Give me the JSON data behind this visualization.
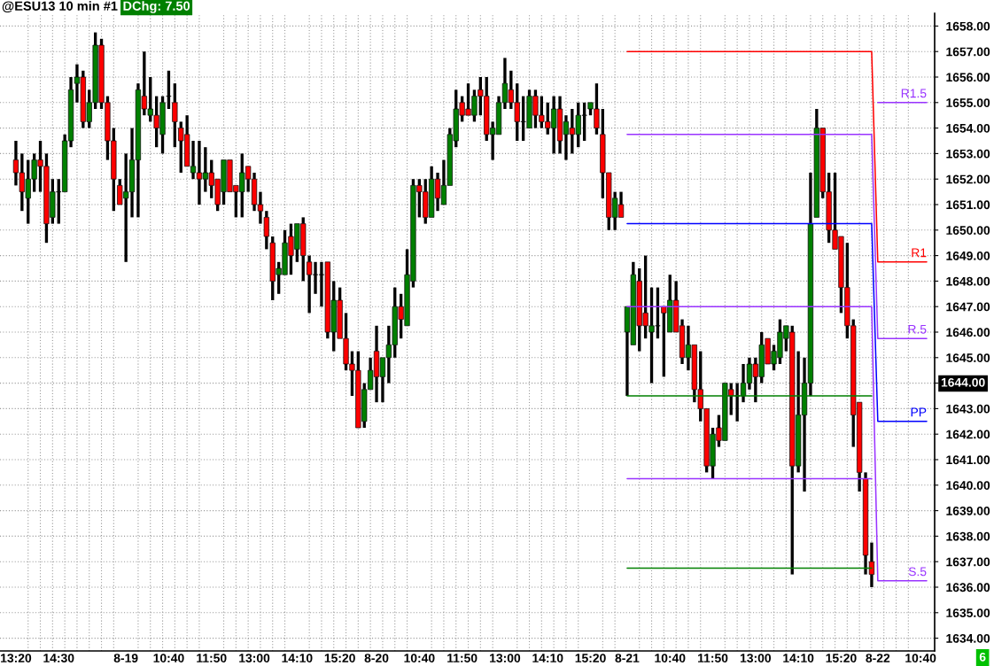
{
  "chart_data": {
    "type": "candlestick",
    "title": "@ESU13 10 min #1",
    "annotations": [
      "DChg: 7.50",
      "1644.00",
      "6"
    ],
    "categories": [
      "13:20",
      null,
      null,
      null,
      null,
      null,
      null,
      "14:30",
      null,
      null,
      null,
      null,
      null,
      null,
      null,
      null,
      null,
      null,
      "8-19",
      null,
      null,
      null,
      null,
      null,
      null,
      "10:40",
      null,
      null,
      null,
      null,
      null,
      null,
      "11:50",
      null,
      null,
      null,
      null,
      null,
      null,
      "13:00",
      null,
      null,
      null,
      null,
      null,
      null,
      "14:10",
      null,
      null,
      null,
      null,
      null,
      null,
      "15:20",
      null,
      null,
      null,
      null,
      null,
      "8-20",
      null,
      null,
      null,
      null,
      null,
      null,
      "10:40",
      null,
      null,
      null,
      null,
      null,
      null,
      "11:50",
      null,
      null,
      null,
      null,
      null,
      null,
      "13:00",
      null,
      null,
      null,
      null,
      null,
      null,
      "14:10",
      null,
      null,
      null,
      null,
      null,
      null,
      "15:20",
      null,
      null,
      null,
      null,
      null,
      "8-21",
      null,
      null,
      null,
      null,
      null,
      null,
      "10:40",
      null,
      null,
      null,
      null,
      null,
      null,
      "11:50",
      null,
      null,
      null,
      null,
      null,
      null,
      "13:00",
      null,
      null,
      null,
      null,
      null,
      null,
      "14:10",
      null,
      null,
      null,
      null,
      null,
      null,
      "15:20",
      null,
      null,
      null,
      null,
      null,
      "8-22",
      null,
      null,
      null,
      null,
      null,
      null,
      "10:40",
      null
    ],
    "ohlc": [
      [
        1652.75,
        1653.5,
        1651.75,
        1652.25
      ],
      [
        1652.25,
        1653,
        1650.75,
        1651.5
      ],
      [
        1651.25,
        1652.75,
        1650.25,
        1652
      ],
      [
        1652,
        1653,
        1651.5,
        1652.75
      ],
      [
        1652.75,
        1653.5,
        1651.5,
        1652.5
      ],
      [
        1652.5,
        1653,
        1649.5,
        1650.25
      ],
      [
        1650.5,
        1652,
        1650.25,
        1651.5
      ],
      [
        1651.5,
        1652,
        1650.25,
        1651.5
      ],
      [
        1651.5,
        1653.75,
        1651.5,
        1653.5
      ],
      [
        1653.5,
        1656,
        1653.25,
        1655.5
      ],
      [
        1655.75,
        1656.5,
        1655,
        1656
      ],
      [
        1656,
        1656.25,
        1654,
        1654.25
      ],
      [
        1654.25,
        1655.5,
        1654,
        1655
      ],
      [
        1655,
        1657.75,
        1654.75,
        1657.25
      ],
      [
        1657.25,
        1657.5,
        1654.75,
        1655
      ],
      [
        1655,
        1655.25,
        1652.75,
        1653.5
      ],
      [
        1653.5,
        1654,
        1650.75,
        1652
      ],
      [
        1651.75,
        1652,
        1651,
        1651
      ],
      [
        1651.25,
        1653,
        1648.75,
        1651.5
      ],
      [
        1651.5,
        1654,
        1650.5,
        1652.75
      ],
      [
        1652.75,
        1655.75,
        1650.5,
        1655.5
      ],
      [
        1655.25,
        1657,
        1654.5,
        1654.75
      ],
      [
        1654.5,
        1656,
        1654.25,
        1654.75
      ],
      [
        1654.5,
        1655.25,
        1653.25,
        1654
      ],
      [
        1653.75,
        1655.25,
        1653,
        1655
      ],
      [
        1655.25,
        1656.25,
        1654.75,
        1655.25
      ],
      [
        1655,
        1655.75,
        1653.25,
        1654.25
      ],
      [
        1654,
        1654.25,
        1652.25,
        1653.5
      ],
      [
        1653.75,
        1654.5,
        1652.5,
        1652.5
      ],
      [
        1652.25,
        1653.5,
        1652,
        1652.5
      ],
      [
        1652.25,
        1653.5,
        1651,
        1652
      ],
      [
        1652,
        1653.25,
        1651.5,
        1652.25
      ],
      [
        1652.25,
        1652.75,
        1651.25,
        1651.75
      ],
      [
        1652,
        1652,
        1650.75,
        1651
      ],
      [
        1651.5,
        1652.75,
        1651,
        1652.75
      ],
      [
        1652.75,
        1652.75,
        1651.5,
        1651.5
      ],
      [
        1651.75,
        1651.75,
        1650.5,
        1651.5
      ],
      [
        1651.5,
        1653,
        1650.5,
        1652.25
      ],
      [
        1652.5,
        1652.5,
        1651.5,
        1652
      ],
      [
        1652,
        1652.25,
        1650.75,
        1651
      ],
      [
        1651,
        1651.5,
        1650.25,
        1650.75
      ],
      [
        1650.5,
        1650.75,
        1649.25,
        1649.75
      ],
      [
        1649.5,
        1649.75,
        1647.25,
        1648
      ],
      [
        1648.25,
        1648.75,
        1647.5,
        1648.5
      ],
      [
        1648.25,
        1650,
        1648.25,
        1649.5
      ],
      [
        1649.75,
        1650.25,
        1648.25,
        1649
      ],
      [
        1649.25,
        1650.25,
        1648.75,
        1650.25
      ],
      [
        1650.25,
        1650.5,
        1648,
        1649
      ],
      [
        1648.75,
        1649,
        1646.75,
        1648.25
      ],
      [
        1648.25,
        1648.75,
        1647.5,
        1648.25
      ],
      [
        1648.25,
        1648.75,
        1647,
        1648.25
      ],
      [
        1648.75,
        1648.75,
        1645.75,
        1646
      ],
      [
        1646,
        1648,
        1645.25,
        1647.25
      ],
      [
        1647.25,
        1647.75,
        1645.75,
        1645.75
      ],
      [
        1645.75,
        1646.75,
        1644.5,
        1644.75
      ],
      [
        1644.75,
        1645.25,
        1643.5,
        1644.5
      ],
      [
        1644.5,
        1645.25,
        1642.25,
        1642.25
      ],
      [
        1642.5,
        1644,
        1642.25,
        1643.75
      ],
      [
        1643.75,
        1645,
        1643.75,
        1644.5
      ],
      [
        1645.25,
        1646.25,
        1643.25,
        1644.25
      ],
      [
        1644.25,
        1645,
        1643.25,
        1645
      ],
      [
        1645,
        1646.25,
        1644,
        1645.5
      ],
      [
        1645.5,
        1647.75,
        1645,
        1647
      ],
      [
        1647,
        1647.5,
        1645.75,
        1646.5
      ],
      [
        1646.25,
        1649.25,
        1646.25,
        1648.25
      ],
      [
        1648,
        1652,
        1647.75,
        1651.75
      ],
      [
        1651.75,
        1652,
        1650.5,
        1651.5
      ],
      [
        1651.5,
        1652,
        1650.25,
        1650.5
      ],
      [
        1650.5,
        1652.5,
        1650.5,
        1652
      ],
      [
        1652,
        1652.25,
        1650.75,
        1651.25
      ],
      [
        1651,
        1652.75,
        1651,
        1651.75
      ],
      [
        1651.75,
        1654,
        1651.75,
        1653.75
      ],
      [
        1653.5,
        1655.5,
        1653.25,
        1654.75
      ],
      [
        1655,
        1655.25,
        1654.25,
        1654.5
      ],
      [
        1654.75,
        1655.75,
        1654.5,
        1654.5
      ],
      [
        1654.5,
        1655.5,
        1654.25,
        1655.25
      ],
      [
        1655.5,
        1656,
        1654.5,
        1655.25
      ],
      [
        1655.25,
        1656,
        1653.5,
        1653.75
      ],
      [
        1653.75,
        1654.25,
        1652.75,
        1654
      ],
      [
        1653.75,
        1655.25,
        1653.75,
        1655
      ],
      [
        1655,
        1656.75,
        1654.75,
        1655.75
      ],
      [
        1655.5,
        1656.25,
        1654.75,
        1655
      ],
      [
        1655,
        1655.75,
        1653.5,
        1654.25
      ],
      [
        1654.25,
        1655.25,
        1653.5,
        1654.25
      ],
      [
        1654,
        1655.5,
        1654,
        1655.25
      ],
      [
        1655.25,
        1655.5,
        1654,
        1654.5
      ],
      [
        1654.5,
        1655.25,
        1654,
        1654.25
      ],
      [
        1654.25,
        1655,
        1653.75,
        1654
      ],
      [
        1654,
        1655.25,
        1653,
        1654.75
      ],
      [
        1654.75,
        1655.25,
        1653,
        1653.5
      ],
      [
        1653.75,
        1654.5,
        1652.75,
        1654.25
      ],
      [
        1654,
        1654.75,
        1653,
        1653.75
      ],
      [
        1653.75,
        1655,
        1653.25,
        1654.5
      ],
      [
        1654.5,
        1655,
        1653.5,
        1654.5
      ],
      [
        1654.75,
        1655,
        1654.5,
        1655
      ],
      [
        1654.75,
        1655.75,
        1653.75,
        1654
      ],
      [
        1653.75,
        1654.75,
        1651.25,
        1652.25
      ],
      [
        1652.25,
        1652.25,
        1650,
        1650.5
      ],
      [
        1650.5,
        1651.5,
        1650,
        1651.25
      ],
      [
        1651,
        1651.5,
        1650.5,
        1650.5
      ],
      [
        1646,
        1647,
        1643.5,
        1647
      ],
      [
        1645.5,
        1648.75,
        1645.5,
        1648.25
      ],
      [
        1648,
        1648.5,
        1645.25,
        1646.25
      ],
      [
        1646.75,
        1649,
        1645.75,
        1646.25
      ],
      [
        1646,
        1647.75,
        1644,
        1646.25
      ],
      [
        1646.25,
        1647.75,
        1645.75,
        1646.25
      ],
      [
        1647,
        1647,
        1644.25,
        1646.75
      ],
      [
        1646,
        1648.25,
        1646,
        1647.25
      ],
      [
        1647.25,
        1648,
        1646,
        1646
      ],
      [
        1646.25,
        1646.5,
        1644.75,
        1645
      ],
      [
        1645,
        1646.25,
        1644.5,
        1645.5
      ],
      [
        1645.5,
        1645.5,
        1643.25,
        1643.75
      ],
      [
        1643.75,
        1645.25,
        1642.5,
        1643
      ],
      [
        1643,
        1643,
        1640.5,
        1640.75
      ],
      [
        1640.75,
        1642.25,
        1640.25,
        1642
      ],
      [
        1642.25,
        1642.75,
        1641.5,
        1641.75
      ],
      [
        1641.75,
        1644,
        1641.75,
        1644
      ],
      [
        1643.75,
        1644,
        1642.75,
        1643.5
      ],
      [
        1643.5,
        1644,
        1642.5,
        1643.5
      ],
      [
        1643.5,
        1644.75,
        1643.25,
        1644
      ],
      [
        1644,
        1645,
        1643.75,
        1644.75
      ],
      [
        1644.75,
        1645,
        1643.25,
        1644.25
      ],
      [
        1644.25,
        1646,
        1644,
        1645.5
      ],
      [
        1645.75,
        1645.75,
        1644.75,
        1644.75
      ],
      [
        1644.75,
        1645.5,
        1644.5,
        1645.25
      ],
      [
        1645,
        1646.5,
        1644.75,
        1646
      ],
      [
        1645.75,
        1646.25,
        1645.25,
        1646.25
      ],
      [
        1646,
        1646.25,
        1636.5,
        1640.75
      ],
      [
        1640.75,
        1645.25,
        1640.5,
        1642.75
      ],
      [
        1642.75,
        1645,
        1639.75,
        1644
      ],
      [
        1644,
        1652.25,
        1643.5,
        1650.25
      ],
      [
        1650.5,
        1654.75,
        1650.5,
        1654
      ],
      [
        1654,
        1654,
        1651.25,
        1651.5
      ],
      [
        1651.5,
        1652.25,
        1649.5,
        1650
      ],
      [
        1650,
        1652.25,
        1649.25,
        1649.25
      ],
      [
        1649.75,
        1649.75,
        1646.75,
        1647.75
      ],
      [
        1647.75,
        1649.5,
        1645.75,
        1646.25
      ],
      [
        1646.25,
        1646.5,
        1641.5,
        1642.75
      ],
      [
        1643.25,
        1643.25,
        1639.75,
        1640.5
      ],
      [
        1640.25,
        1640.5,
        1636.5,
        1637.25
      ],
      [
        1637,
        1637.75,
        1636,
        1636.5
      ],
      null,
      null,
      null,
      null,
      null,
      null,
      null,
      null,
      null
    ],
    "colors": [
      "#ff0000",
      "#ff0000",
      "#008000",
      "#008000",
      "#ff0000",
      "#ff0000",
      "#008000",
      "#000000",
      "#008000",
      "#008000",
      "#008000",
      "#ff0000",
      "#008000",
      "#008000",
      "#ff0000",
      "#ff0000",
      "#ff0000",
      "#ff0000",
      "#008000",
      "#008000",
      "#008000",
      "#ff0000",
      "#008000",
      "#ff0000",
      "#008000",
      "#000000",
      "#ff0000",
      "#ff0000",
      "#ff0000",
      "#008000",
      "#ff0000",
      "#008000",
      "#ff0000",
      "#ff0000",
      "#008000",
      "#ff0000",
      "#ff0000",
      "#008000",
      "#ff0000",
      "#ff0000",
      "#ff0000",
      "#ff0000",
      "#ff0000",
      "#008000",
      "#008000",
      "#ff0000",
      "#008000",
      "#ff0000",
      "#ff0000",
      "#000000",
      "#000000",
      "#ff0000",
      "#008000",
      "#ff0000",
      "#ff0000",
      "#ff0000",
      "#ff0000",
      "#008000",
      "#008000",
      "#ff0000",
      "#008000",
      "#008000",
      "#008000",
      "#ff0000",
      "#008000",
      "#008000",
      "#ff0000",
      "#ff0000",
      "#008000",
      "#ff0000",
      "#008000",
      "#008000",
      "#008000",
      "#ff0000",
      "#ff0000",
      "#008000",
      "#ff0000",
      "#ff0000",
      "#008000",
      "#008000",
      "#008000",
      "#ff0000",
      "#ff0000",
      "#000000",
      "#008000",
      "#ff0000",
      "#ff0000",
      "#ff0000",
      "#008000",
      "#ff0000",
      "#008000",
      "#ff0000",
      "#008000",
      "#000000",
      "#008000",
      "#ff0000",
      "#ff0000",
      "#ff0000",
      "#008000",
      "#ff0000",
      "#008000",
      "#008000",
      "#ff0000",
      "#ff0000",
      "#008000",
      "#000000",
      "#ff0000",
      "#008000",
      "#ff0000",
      "#ff0000",
      "#008000",
      "#ff0000",
      "#ff0000",
      "#ff0000",
      "#008000",
      "#ff0000",
      "#008000",
      "#ff0000",
      "#000000",
      "#008000",
      "#008000",
      "#ff0000",
      "#008000",
      "#ff0000",
      "#008000",
      "#008000",
      "#008000",
      "#ff0000",
      "#008000",
      "#008000",
      "#008000",
      "#008000",
      "#ff0000",
      "#ff0000",
      "#ff0000",
      "#ff0000",
      "#ff0000",
      "#ff0000",
      "#ff0000",
      "#ff0000",
      "#ff0000",
      null,
      null,
      null,
      null,
      null,
      null,
      null,
      null,
      null
    ],
    "series": [
      {
        "type": "line",
        "name": "R1.5",
        "color": "#9933ff",
        "values": [
          null,
          null,
          null,
          null,
          null,
          null,
          null,
          null,
          null,
          null,
          null,
          null,
          null,
          null,
          null,
          null,
          null,
          null,
          null,
          null,
          null,
          null,
          null,
          null,
          null,
          null,
          null,
          null,
          null,
          null,
          null,
          null,
          null,
          null,
          null,
          null,
          null,
          null,
          null,
          null,
          null,
          null,
          null,
          null,
          null,
          null,
          null,
          null,
          null,
          null,
          null,
          null,
          null,
          null,
          null,
          null,
          null,
          null,
          null,
          null,
          null,
          null,
          null,
          null,
          null,
          null,
          null,
          null,
          null,
          null,
          null,
          null,
          null,
          null,
          null,
          null,
          null,
          null,
          null,
          null,
          null,
          null,
          null,
          null,
          null,
          null,
          null,
          null,
          null,
          null,
          null,
          null,
          null,
          null,
          null,
          null,
          null,
          null,
          null,
          null,
          null,
          null,
          null,
          null,
          null,
          null,
          null,
          null,
          null,
          null,
          null,
          null,
          null,
          null,
          null,
          null,
          null,
          null,
          null,
          null,
          null,
          null,
          null,
          null,
          null,
          null,
          null,
          null,
          null,
          null,
          null,
          null,
          null,
          null,
          null,
          null,
          null,
          null,
          null,
          null,
          null,
          1655,
          1655,
          1655,
          1655,
          1655,
          1655,
          1655,
          1655,
          1655
        ]
      },
      {
        "type": "line",
        "name": "R1",
        "color": "#ff0000",
        "values": [
          null,
          null,
          null,
          null,
          null,
          null,
          null,
          null,
          null,
          null,
          null,
          null,
          null,
          null,
          null,
          null,
          null,
          null,
          null,
          null,
          null,
          null,
          null,
          null,
          null,
          null,
          null,
          null,
          null,
          null,
          null,
          null,
          null,
          null,
          null,
          null,
          null,
          null,
          null,
          null,
          null,
          null,
          null,
          null,
          null,
          null,
          null,
          null,
          null,
          null,
          null,
          null,
          null,
          null,
          null,
          null,
          null,
          null,
          null,
          null,
          null,
          null,
          null,
          null,
          null,
          null,
          null,
          null,
          null,
          null,
          null,
          null,
          null,
          null,
          null,
          null,
          null,
          null,
          null,
          null,
          null,
          null,
          null,
          null,
          null,
          null,
          null,
          null,
          null,
          null,
          null,
          null,
          null,
          null,
          null,
          null,
          null,
          null,
          null,
          null,
          1657,
          1657,
          1657,
          1657,
          1657,
          1657,
          1657,
          1657,
          1657,
          1657,
          1657,
          1657,
          1657,
          1657,
          1657,
          1657,
          1657,
          1657,
          1657,
          1657,
          1657,
          1657,
          1657,
          1657,
          1657,
          1657,
          1657,
          1657,
          1657,
          1657,
          1657,
          1657,
          1657,
          1657,
          1657,
          1657,
          1657,
          1657,
          1657,
          1657,
          1657,
          1648.75,
          1648.75,
          1648.75,
          1648.75,
          1648.75,
          1648.75,
          1648.75,
          1648.75,
          1648.75
        ]
      },
      {
        "type": "line",
        "name": "R.5",
        "color": "#9933ff",
        "values": [
          null,
          null,
          null,
          null,
          null,
          null,
          null,
          null,
          null,
          null,
          null,
          null,
          null,
          null,
          null,
          null,
          null,
          null,
          null,
          null,
          null,
          null,
          null,
          null,
          null,
          null,
          null,
          null,
          null,
          null,
          null,
          null,
          null,
          null,
          null,
          null,
          null,
          null,
          null,
          null,
          null,
          null,
          null,
          null,
          null,
          null,
          null,
          null,
          null,
          null,
          null,
          null,
          null,
          null,
          null,
          null,
          null,
          null,
          null,
          null,
          null,
          null,
          null,
          null,
          null,
          null,
          null,
          null,
          null,
          null,
          null,
          null,
          null,
          null,
          null,
          null,
          null,
          null,
          null,
          null,
          null,
          null,
          null,
          null,
          null,
          null,
          null,
          null,
          null,
          null,
          null,
          null,
          null,
          null,
          null,
          null,
          null,
          null,
          null,
          null,
          1653.75,
          1653.75,
          1653.75,
          1653.75,
          1653.75,
          1653.75,
          1653.75,
          1653.75,
          1653.75,
          1653.75,
          1653.75,
          1653.75,
          1653.75,
          1653.75,
          1653.75,
          1653.75,
          1653.75,
          1653.75,
          1653.75,
          1653.75,
          1653.75,
          1653.75,
          1653.75,
          1653.75,
          1653.75,
          1653.75,
          1653.75,
          1653.75,
          1653.75,
          1653.75,
          1653.75,
          1653.75,
          1653.75,
          1653.75,
          1653.75,
          1653.75,
          1653.75,
          1653.75,
          1653.75,
          1653.75,
          1653.75,
          1645.75,
          1645.75,
          1645.75,
          1645.75,
          1645.75,
          1645.75,
          1645.75,
          1645.75,
          1645.75
        ]
      },
      {
        "type": "line",
        "name": "PP",
        "color": "#0000ff",
        "values": [
          null,
          null,
          null,
          null,
          null,
          null,
          null,
          null,
          null,
          null,
          null,
          null,
          null,
          null,
          null,
          null,
          null,
          null,
          null,
          null,
          null,
          null,
          null,
          null,
          null,
          null,
          null,
          null,
          null,
          null,
          null,
          null,
          null,
          null,
          null,
          null,
          null,
          null,
          null,
          null,
          null,
          null,
          null,
          null,
          null,
          null,
          null,
          null,
          null,
          null,
          null,
          null,
          null,
          null,
          null,
          null,
          null,
          null,
          null,
          null,
          null,
          null,
          null,
          null,
          null,
          null,
          null,
          null,
          null,
          null,
          null,
          null,
          null,
          null,
          null,
          null,
          null,
          null,
          null,
          null,
          null,
          null,
          null,
          null,
          null,
          null,
          null,
          null,
          null,
          null,
          null,
          null,
          null,
          null,
          null,
          null,
          null,
          null,
          null,
          null,
          1650.25,
          1650.25,
          1650.25,
          1650.25,
          1650.25,
          1650.25,
          1650.25,
          1650.25,
          1650.25,
          1650.25,
          1650.25,
          1650.25,
          1650.25,
          1650.25,
          1650.25,
          1650.25,
          1650.25,
          1650.25,
          1650.25,
          1650.25,
          1650.25,
          1650.25,
          1650.25,
          1650.25,
          1650.25,
          1650.25,
          1650.25,
          1650.25,
          1650.25,
          1650.25,
          1650.25,
          1650.25,
          1650.25,
          1650.25,
          1650.25,
          1650.25,
          1650.25,
          1650.25,
          1650.25,
          1650.25,
          1650.25,
          1642.5,
          1642.5,
          1642.5,
          1642.5,
          1642.5,
          1642.5,
          1642.5,
          1642.5,
          1642.5
        ]
      },
      {
        "type": "line",
        "name": "S.5",
        "color": "#9933ff",
        "values": [
          null,
          null,
          null,
          null,
          null,
          null,
          null,
          null,
          null,
          null,
          null,
          null,
          null,
          null,
          null,
          null,
          null,
          null,
          null,
          null,
          null,
          null,
          null,
          null,
          null,
          null,
          null,
          null,
          null,
          null,
          null,
          null,
          null,
          null,
          null,
          null,
          null,
          null,
          null,
          null,
          null,
          null,
          null,
          null,
          null,
          null,
          null,
          null,
          null,
          null,
          null,
          null,
          null,
          null,
          null,
          null,
          null,
          null,
          null,
          null,
          null,
          null,
          null,
          null,
          null,
          null,
          null,
          null,
          null,
          null,
          null,
          null,
          null,
          null,
          null,
          null,
          null,
          null,
          null,
          null,
          null,
          null,
          null,
          null,
          null,
          null,
          null,
          null,
          null,
          null,
          null,
          null,
          null,
          null,
          null,
          null,
          null,
          null,
          null,
          null,
          1647,
          1647,
          1647,
          1647,
          1647,
          1647,
          1647,
          1647,
          1647,
          1647,
          1647,
          1647,
          1647,
          1647,
          1647,
          1647,
          1647,
          1647,
          1647,
          1647,
          1647,
          1647,
          1647,
          1647,
          1647,
          1647,
          1647,
          1647,
          1647,
          1647,
          1647,
          1647,
          1647,
          1647,
          1647,
          1647,
          1647,
          1647,
          1647,
          1647,
          1647,
          1636.25,
          1636.25,
          1636.25,
          1636.25,
          1636.25,
          1636.25,
          1636.25,
          1636.25,
          1636.25
        ]
      },
      {
        "type": "line",
        "color": "#008000",
        "values": [
          null,
          null,
          null,
          null,
          null,
          null,
          null,
          null,
          null,
          null,
          null,
          null,
          null,
          null,
          null,
          null,
          null,
          null,
          null,
          null,
          null,
          null,
          null,
          null,
          null,
          null,
          null,
          null,
          null,
          null,
          null,
          null,
          null,
          null,
          null,
          null,
          null,
          null,
          null,
          null,
          null,
          null,
          null,
          null,
          null,
          null,
          null,
          null,
          null,
          null,
          null,
          null,
          null,
          null,
          null,
          null,
          null,
          null,
          null,
          null,
          null,
          null,
          null,
          null,
          null,
          null,
          null,
          null,
          null,
          null,
          null,
          null,
          null,
          null,
          null,
          null,
          null,
          null,
          null,
          null,
          null,
          null,
          null,
          null,
          null,
          null,
          null,
          null,
          null,
          null,
          null,
          null,
          null,
          null,
          null,
          null,
          null,
          null,
          null,
          null,
          1643.5,
          1643.5,
          1643.5,
          1643.5,
          1643.5,
          1643.5,
          1643.5,
          1643.5,
          1643.5,
          1643.5,
          1643.5,
          1643.5,
          1643.5,
          1643.5,
          1643.5,
          1643.5,
          1643.5,
          1643.5,
          1643.5,
          1643.5,
          1643.5,
          1643.5,
          1643.5,
          1643.5,
          1643.5,
          1643.5,
          1643.5,
          1643.5,
          1643.5,
          1643.5,
          1643.5,
          1643.5,
          1643.5,
          1643.5,
          1643.5,
          1643.5,
          1643.5,
          1643.5,
          1643.5,
          1643.5,
          1643.5,
          null,
          null,
          null,
          null,
          null,
          null,
          null,
          null,
          null
        ]
      },
      {
        "type": "line",
        "color": "#9933ff",
        "values": [
          null,
          null,
          null,
          null,
          null,
          null,
          null,
          null,
          null,
          null,
          null,
          null,
          null,
          null,
          null,
          null,
          null,
          null,
          null,
          null,
          null,
          null,
          null,
          null,
          null,
          null,
          null,
          null,
          null,
          null,
          null,
          null,
          null,
          null,
          null,
          null,
          null,
          null,
          null,
          null,
          null,
          null,
          null,
          null,
          null,
          null,
          null,
          null,
          null,
          null,
          null,
          null,
          null,
          null,
          null,
          null,
          null,
          null,
          null,
          null,
          null,
          null,
          null,
          null,
          null,
          null,
          null,
          null,
          null,
          null,
          null,
          null,
          null,
          null,
          null,
          null,
          null,
          null,
          null,
          null,
          null,
          null,
          null,
          null,
          null,
          null,
          null,
          null,
          null,
          null,
          null,
          null,
          null,
          null,
          null,
          null,
          null,
          null,
          null,
          null,
          1640.25,
          1640.25,
          1640.25,
          1640.25,
          1640.25,
          1640.25,
          1640.25,
          1640.25,
          1640.25,
          1640.25,
          1640.25,
          1640.25,
          1640.25,
          1640.25,
          1640.25,
          1640.25,
          1640.25,
          1640.25,
          1640.25,
          1640.25,
          1640.25,
          1640.25,
          1640.25,
          1640.25,
          1640.25,
          1640.25,
          1640.25,
          1640.25,
          1640.25,
          1640.25,
          1640.25,
          1640.25,
          1640.25,
          1640.25,
          1640.25,
          1640.25,
          1640.25,
          1640.25,
          1640.25,
          1640.25,
          1640.25,
          null,
          null,
          null,
          null,
          null,
          null,
          null,
          null,
          null
        ]
      },
      {
        "type": "line",
        "color": "#008000",
        "values": [
          null,
          null,
          null,
          null,
          null,
          null,
          null,
          null,
          null,
          null,
          null,
          null,
          null,
          null,
          null,
          null,
          null,
          null,
          null,
          null,
          null,
          null,
          null,
          null,
          null,
          null,
          null,
          null,
          null,
          null,
          null,
          null,
          null,
          null,
          null,
          null,
          null,
          null,
          null,
          null,
          null,
          null,
          null,
          null,
          null,
          null,
          null,
          null,
          null,
          null,
          null,
          null,
          null,
          null,
          null,
          null,
          null,
          null,
          null,
          null,
          null,
          null,
          null,
          null,
          null,
          null,
          null,
          null,
          null,
          null,
          null,
          null,
          null,
          null,
          null,
          null,
          null,
          null,
          null,
          null,
          null,
          null,
          null,
          null,
          null,
          null,
          null,
          null,
          null,
          null,
          null,
          null,
          null,
          null,
          null,
          null,
          null,
          null,
          null,
          null,
          1636.75,
          1636.75,
          1636.75,
          1636.75,
          1636.75,
          1636.75,
          1636.75,
          1636.75,
          1636.75,
          1636.75,
          1636.75,
          1636.75,
          1636.75,
          1636.75,
          1636.75,
          1636.75,
          1636.75,
          1636.75,
          1636.75,
          1636.75,
          1636.75,
          1636.75,
          1636.75,
          1636.75,
          1636.75,
          1636.75,
          1636.75,
          1636.75,
          1636.75,
          1636.75,
          1636.75,
          1636.75,
          1636.75,
          1636.75,
          1636.75,
          1636.75,
          1636.75,
          1636.75,
          1636.75,
          1636.75,
          1636.75,
          null,
          null,
          null,
          null,
          null,
          null,
          null,
          null,
          null
        ]
      }
    ],
    "ylim": [
      1633.5,
      1658.5
    ],
    "yticks": [
      {
        "value": 1634,
        "label": "1634.00"
      },
      {
        "value": 1635,
        "label": "1635.00"
      },
      {
        "value": 1636,
        "label": "1636.00"
      },
      {
        "value": 1637,
        "label": "1637.00"
      },
      {
        "value": 1638,
        "label": "1638.00"
      },
      {
        "value": 1639,
        "label": "1639.00"
      },
      {
        "value": 1640,
        "label": "1640.00"
      },
      {
        "value": 1641,
        "label": "1641.00"
      },
      {
        "value": 1642,
        "label": "1642.00"
      },
      {
        "value": 1643,
        "label": "1643.00"
      },
      {
        "value": 1644,
        "label": null
      },
      {
        "value": 1645,
        "label": "1645.00"
      },
      {
        "value": 1646,
        "label": "1646.00"
      },
      {
        "value": 1647,
        "label": "1647.00"
      },
      {
        "value": 1648,
        "label": "1648.00"
      },
      {
        "value": 1649,
        "label": "1649.00"
      },
      {
        "value": 1650,
        "label": "1650.00"
      },
      {
        "value": 1651,
        "label": "1651.00"
      },
      {
        "value": 1652,
        "label": "1652.00"
      },
      {
        "value": 1653,
        "label": "1653.00"
      },
      {
        "value": 1654,
        "label": "1654.00"
      },
      {
        "value": 1655,
        "label": "1655.00"
      },
      {
        "value": 1656,
        "label": "1656.00"
      },
      {
        "value": 1657,
        "label": "1657.00"
      },
      {
        "value": 1658,
        "label": "1658.00"
      }
    ],
    "grid": true
  }
}
